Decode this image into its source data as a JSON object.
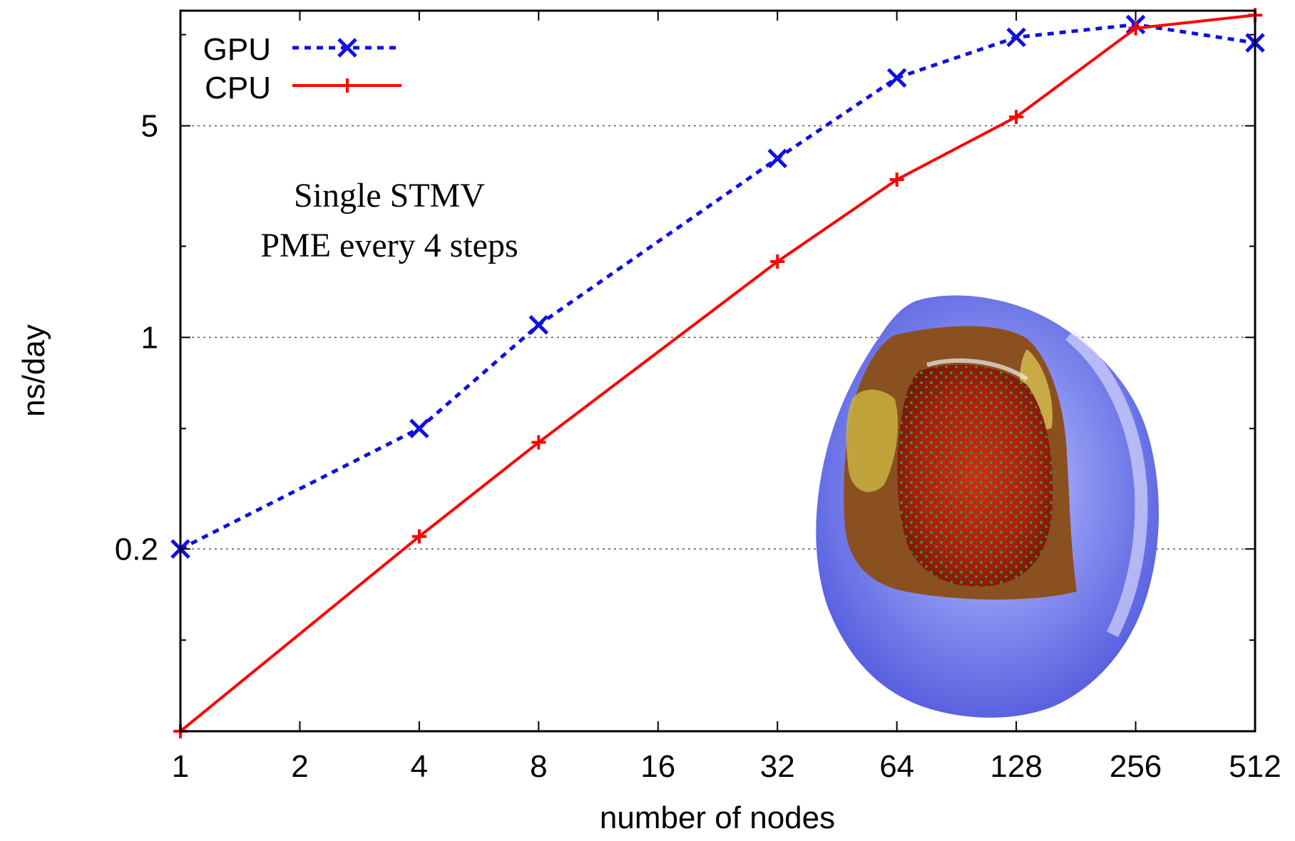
{
  "chart_data": {
    "type": "line",
    "title": "",
    "xlabel": "number of nodes",
    "ylabel": "ns/day",
    "x_scale": "log2",
    "y_scale": "log",
    "xlim": [
      1,
      512
    ],
    "ylim": [
      0.05,
      12
    ],
    "x_ticks": [
      1,
      2,
      4,
      8,
      16,
      32,
      64,
      128,
      256,
      512
    ],
    "x_tick_labels": [
      "1",
      "2",
      "4",
      "8",
      "16",
      "32",
      "64",
      "128",
      "256",
      "512"
    ],
    "y_ticks": [
      0.2,
      1,
      5
    ],
    "y_tick_labels": [
      "0.2",
      "1",
      "5"
    ],
    "grid": "horizontal dotted at labeled y ticks",
    "legend_position": "top-left",
    "series": [
      {
        "name": "GPU",
        "color": "#1010e0",
        "line_style": "dotted",
        "marker": "x",
        "x": [
          1,
          4,
          8,
          32,
          64,
          128,
          256,
          512
        ],
        "y": [
          0.2,
          0.5,
          1.1,
          3.9,
          7.2,
          9.8,
          10.8,
          9.4
        ]
      },
      {
        "name": "CPU",
        "color": "#ff0000",
        "line_style": "solid",
        "marker": "+",
        "x": [
          1,
          4,
          8,
          32,
          64,
          128,
          256,
          512
        ],
        "y": [
          0.05,
          0.22,
          0.45,
          1.78,
          3.32,
          5.35,
          10.5,
          11.6
        ]
      }
    ],
    "annotations": [
      "Single STMV",
      "PME every 4 steps"
    ],
    "inset_image": "virus-capsid-render"
  }
}
